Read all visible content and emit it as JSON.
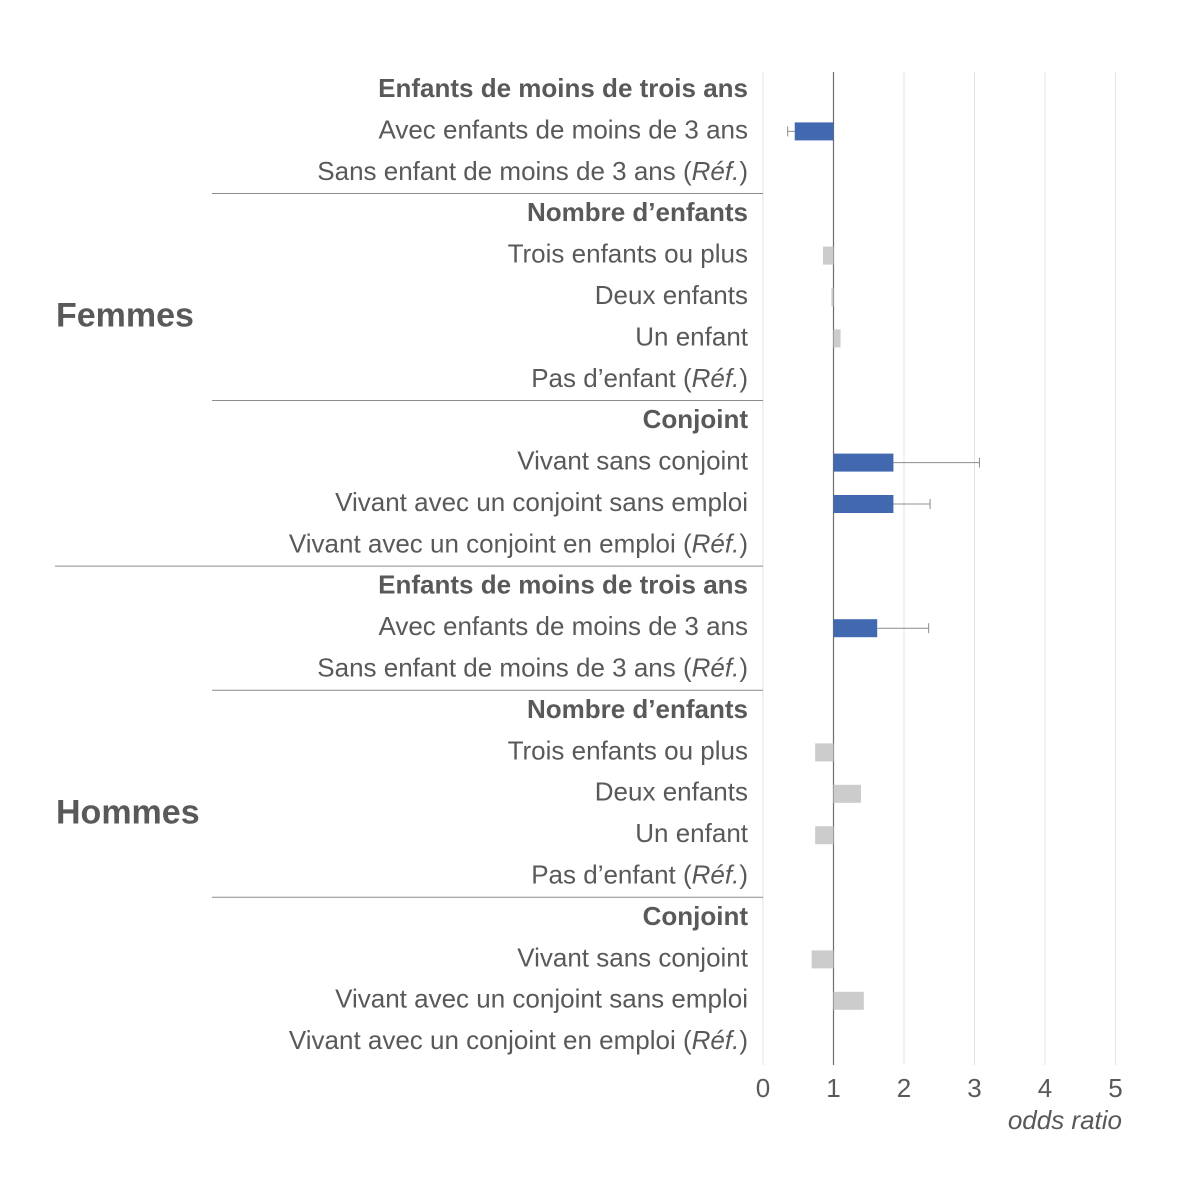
{
  "chart_data": {
    "type": "bar",
    "orientation": "horizontal",
    "xlabel": "odds ratio",
    "xlim": [
      0,
      5
    ],
    "xticks": [
      0,
      1,
      2,
      3,
      4,
      5
    ],
    "reference_line": 1,
    "grid": true,
    "colors": {
      "significant": "#4268b0",
      "not_significant": "#cccccc",
      "error_bar": "#8c8c8c"
    },
    "groups": [
      {
        "name": "Femmes",
        "sections": [
          {
            "title": "Enfants de moins de trois ans",
            "rows": [
              {
                "label": "Avec enfants de moins de 3 ans",
                "value": 0.45,
                "ci": [
                  0.35,
                  null
                ],
                "significant": true
              },
              {
                "label": "Sans enfant de moins de 3 ans",
                "ref_suffix": "Réf.",
                "value": null
              }
            ]
          },
          {
            "title": "Nombre d’enfants",
            "rows": [
              {
                "label": "Trois enfants ou plus",
                "value": 0.85,
                "significant": false
              },
              {
                "label": "Deux enfants",
                "value": 0.97,
                "significant": false
              },
              {
                "label": "Un enfant",
                "value": 1.1,
                "significant": false
              },
              {
                "label": "Pas d’enfant",
                "ref_suffix": "Réf.",
                "value": null
              }
            ]
          },
          {
            "title": "Conjoint",
            "rows": [
              {
                "label": "Vivant sans conjoint",
                "value": 1.85,
                "ci": [
                  null,
                  3.07
                ],
                "significant": true
              },
              {
                "label": "Vivant avec un conjoint sans emploi",
                "value": 1.85,
                "ci": [
                  null,
                  2.37
                ],
                "significant": true
              },
              {
                "label": "Vivant avec un conjoint en emploi",
                "ref_suffix": "Réf.",
                "value": null
              }
            ]
          }
        ]
      },
      {
        "name": "Hommes",
        "sections": [
          {
            "title": "Enfants de moins de trois ans",
            "rows": [
              {
                "label": "Avec enfants de moins de 3 ans",
                "value": 1.62,
                "ci": [
                  null,
                  2.35
                ],
                "significant": true
              },
              {
                "label": "Sans enfant de moins de 3 ans",
                "ref_suffix": "Réf.",
                "value": null
              }
            ]
          },
          {
            "title": "Nombre d’enfants",
            "rows": [
              {
                "label": "Trois enfants ou plus",
                "value": 0.74,
                "significant": false
              },
              {
                "label": "Deux enfants",
                "value": 1.39,
                "significant": false
              },
              {
                "label": "Un enfant",
                "value": 0.74,
                "significant": false
              },
              {
                "label": "Pas d’enfant",
                "ref_suffix": "Réf.",
                "value": null
              }
            ]
          },
          {
            "title": "Conjoint",
            "rows": [
              {
                "label": "Vivant sans conjoint",
                "value": 0.69,
                "significant": false
              },
              {
                "label": "Vivant avec un conjoint sans emploi",
                "value": 1.43,
                "significant": false
              },
              {
                "label": "Vivant avec un conjoint en emploi",
                "ref_suffix": "Réf.",
                "value": null
              }
            ]
          }
        ]
      }
    ]
  }
}
